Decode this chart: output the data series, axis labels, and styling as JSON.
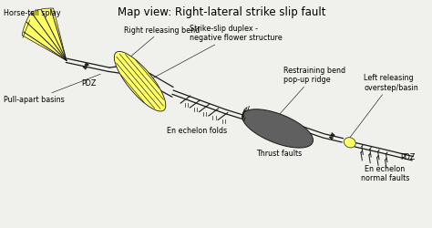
{
  "title": "Map view: Right-lateral strike slip fault",
  "bg_color": "#f0f0ec",
  "fault_color": "#1a1a1a",
  "yellow": "#ffff66",
  "yellow2": "#eeee44",
  "dark_gray": "#606060",
  "med_gray": "#888888",
  "labels": {
    "horse_tail": "Horse-tail splay",
    "pdz1": "PDZ",
    "right_bend": "Right releasing bend",
    "duplex": "Strike-slip duplex -\nnegative flower structure",
    "pull_apart": "Pull-apart basins",
    "en_echelon_folds": "En echelon folds",
    "restraining": "Restraining bend\npop-up ridge",
    "thrust": "Thrust faults",
    "left_releasing": "Left releasing\noverstep/basin",
    "pdz2": "PDZ",
    "en_echelon_normal": "En echelon\nnormal faults"
  },
  "label_fontsize": 5.8,
  "title_fontsize": 8.5
}
